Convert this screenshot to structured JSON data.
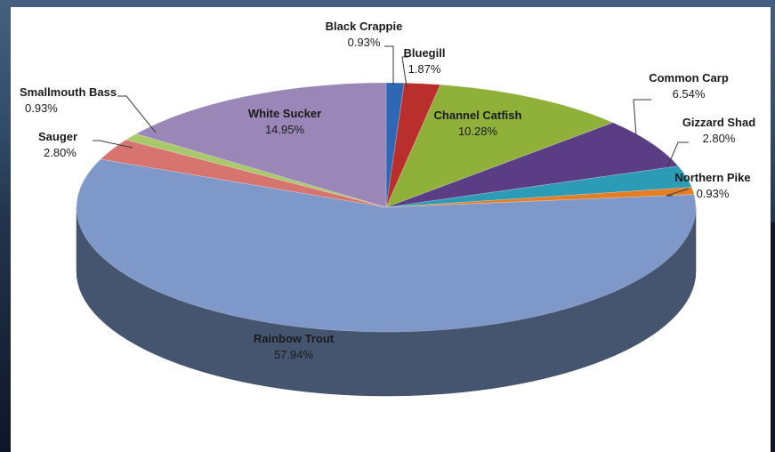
{
  "chart_data": {
    "type": "pie",
    "title": "",
    "slices": [
      {
        "label": "Black Crappie",
        "value": 0.93,
        "display": "0.93%",
        "color": "#2f67b5"
      },
      {
        "label": "Bluegill",
        "value": 1.87,
        "display": "1.87%",
        "color": "#b92f2c"
      },
      {
        "label": "Channel Catfish",
        "value": 10.28,
        "display": "10.28%",
        "color": "#8fb13a"
      },
      {
        "label": "Common Carp",
        "value": 6.54,
        "display": "6.54%",
        "color": "#5b3d86"
      },
      {
        "label": "Gizzard Shad",
        "value": 2.8,
        "display": "2.80%",
        "color": "#2c9bb5"
      },
      {
        "label": "Northern Pike",
        "value": 0.93,
        "display": "0.93%",
        "color": "#e67d22"
      },
      {
        "label": "Rainbow Trout",
        "value": 57.94,
        "display": "57.94%",
        "color": "#7d98c9"
      },
      {
        "label": "Sauger",
        "value": 2.8,
        "display": "2.80%",
        "color": "#d87470"
      },
      {
        "label": "Smallmouth Bass",
        "value": 0.93,
        "display": "0.93%",
        "color": "#a8c96a"
      },
      {
        "label": "White Sucker",
        "value": 14.95,
        "display": "14.95%",
        "color": "#9a87b8"
      }
    ],
    "legend": "none",
    "style": "3d-pie"
  }
}
